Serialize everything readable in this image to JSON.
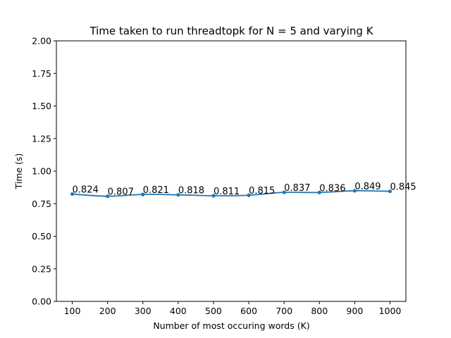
{
  "chart_data": {
    "type": "line",
    "title": "Time taken to run threadtopk for N = 5 and varying K",
    "xlabel": "Number of most occuring words (K)",
    "ylabel": "Time (s)",
    "x": [
      100,
      200,
      300,
      400,
      500,
      600,
      700,
      800,
      900,
      1000
    ],
    "series": [
      {
        "values": [
          0.824,
          0.807,
          0.821,
          0.818,
          0.811,
          0.815,
          0.837,
          0.836,
          0.849,
          0.845
        ],
        "labels": [
          "0.824",
          "0.807",
          "0.821",
          "0.818",
          "0.811",
          "0.815",
          "0.837",
          "0.836",
          "0.849",
          "0.845"
        ],
        "color": "#1f77b4",
        "smoothed": true,
        "markers": true
      }
    ],
    "xlim": [
      55,
      1045
    ],
    "ylim": [
      0,
      2.0
    ],
    "xticks": [
      "100",
      "200",
      "300",
      "400",
      "500",
      "600",
      "700",
      "800",
      "900",
      "1000"
    ],
    "xtick_values": [
      100,
      200,
      300,
      400,
      500,
      600,
      700,
      800,
      900,
      1000
    ],
    "yticks": [
      "0.00",
      "0.25",
      "0.50",
      "0.75",
      "1.00",
      "1.25",
      "1.50",
      "1.75",
      "2.00"
    ],
    "ytick_values": [
      0,
      0.25,
      0.5,
      0.75,
      1.0,
      1.25,
      1.5,
      1.75,
      2.0
    ],
    "grid": false,
    "legend": "none"
  }
}
